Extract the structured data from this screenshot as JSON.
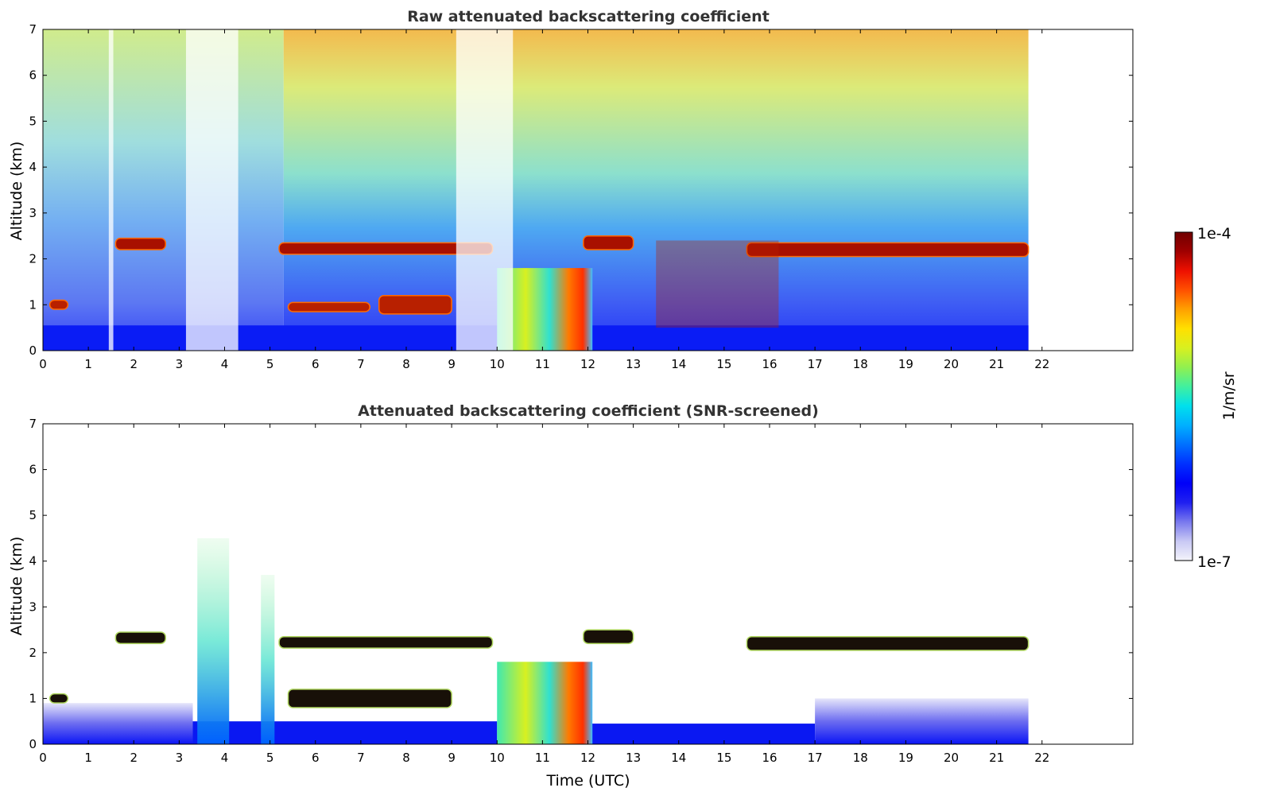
{
  "chart_data": [
    {
      "type": "heatmap",
      "title": "Raw attenuated backscattering coefficient",
      "xlabel": "",
      "ylabel": "Altitude (km)",
      "xlim": [
        0,
        24
      ],
      "ylim": [
        0,
        7
      ],
      "x_ticks": [
        "0",
        "1",
        "2",
        "3",
        "4",
        "5",
        "6",
        "7",
        "8",
        "9",
        "10",
        "11",
        "12",
        "13",
        "14",
        "15",
        "16",
        "17",
        "18",
        "19",
        "20",
        "21",
        "22"
      ],
      "y_ticks": [
        "0",
        "1",
        "2",
        "3",
        "4",
        "5",
        "6",
        "7"
      ],
      "data_end_time": 21.7,
      "features": [
        {
          "kind": "cloud_layer",
          "t": [
            1.6,
            2.7
          ],
          "z": [
            2.2,
            2.45
          ]
        },
        {
          "kind": "cloud_layer",
          "t": [
            0.15,
            0.55
          ],
          "z": [
            0.9,
            1.1
          ]
        },
        {
          "kind": "cloud_layer",
          "t": [
            5.2,
            9.9
          ],
          "z": [
            2.1,
            2.35
          ]
        },
        {
          "kind": "cloud_layer",
          "t": [
            5.4,
            7.2
          ],
          "z": [
            0.85,
            1.05
          ]
        },
        {
          "kind": "cloud_layer",
          "t": [
            7.4,
            9.0
          ],
          "z": [
            0.8,
            1.2
          ]
        },
        {
          "kind": "cloud_layer",
          "t": [
            11.9,
            13.0
          ],
          "z": [
            2.2,
            2.5
          ]
        },
        {
          "kind": "cloud_layer",
          "t": [
            15.5,
            21.7
          ],
          "z": [
            2.05,
            2.35
          ]
        },
        {
          "kind": "convective_cloud",
          "t": [
            10.0,
            12.1
          ],
          "z": [
            0,
            1.8
          ]
        },
        {
          "kind": "broken_clouds",
          "t": [
            13.5,
            16.2
          ],
          "z": [
            0.5,
            2.4
          ]
        },
        {
          "kind": "missing_profiles",
          "t": [
            1.45,
            1.55
          ]
        },
        {
          "kind": "missing_profiles",
          "t": [
            3.15,
            4.3
          ]
        },
        {
          "kind": "missing_profiles",
          "t": [
            9.1,
            10.35
          ]
        }
      ]
    },
    {
      "type": "heatmap",
      "title": "Attenuated backscattering coefficient (SNR-screened)",
      "xlabel": "Time (UTC)",
      "ylabel": "Altitude (km)",
      "xlim": [
        0,
        24
      ],
      "ylim": [
        0,
        7
      ],
      "x_ticks": [
        "0",
        "1",
        "2",
        "3",
        "4",
        "5",
        "6",
        "7",
        "8",
        "9",
        "10",
        "11",
        "12",
        "13",
        "14",
        "15",
        "16",
        "17",
        "18",
        "19",
        "20",
        "21",
        "22"
      ],
      "y_ticks": [
        "0",
        "1",
        "2",
        "3",
        "4",
        "5",
        "6",
        "7"
      ],
      "data_end_time": 21.7,
      "features": [
        {
          "kind": "cloud_layer",
          "t": [
            1.6,
            2.7
          ],
          "z": [
            2.2,
            2.45
          ]
        },
        {
          "kind": "cloud_layer",
          "t": [
            0.15,
            0.55
          ],
          "z": [
            0.9,
            1.1
          ]
        },
        {
          "kind": "cloud_layer",
          "t": [
            5.2,
            9.9
          ],
          "z": [
            2.1,
            2.35
          ]
        },
        {
          "kind": "cloud_layer",
          "t": [
            5.4,
            9.0
          ],
          "z": [
            0.8,
            1.2
          ]
        },
        {
          "kind": "cloud_layer",
          "t": [
            11.9,
            13.0
          ],
          "z": [
            2.2,
            2.5
          ]
        },
        {
          "kind": "cloud_layer",
          "t": [
            15.5,
            21.7
          ],
          "z": [
            2.05,
            2.35
          ]
        },
        {
          "kind": "convective_cloud",
          "t": [
            10.0,
            12.1
          ],
          "z": [
            0,
            1.8
          ]
        },
        {
          "kind": "aerosol_plume",
          "t": [
            3.4,
            4.1
          ],
          "z": [
            0,
            4.5
          ]
        },
        {
          "kind": "aerosol_plume",
          "t": [
            4.8,
            5.1
          ],
          "z": [
            0,
            3.7
          ]
        }
      ]
    }
  ],
  "colorbar": {
    "label": "1/m/sr",
    "max_label": "1e-4",
    "min_label": "1e-7",
    "scale": "log",
    "range": [
      1e-07,
      0.0001
    ],
    "colors": [
      "#f4f4fb",
      "#c8c8f4",
      "#7878ee",
      "#2020f0",
      "#0000f8",
      "#0030ff",
      "#0070ff",
      "#00b0ff",
      "#00e0ec",
      "#40f0a0",
      "#90f050",
      "#d8f020",
      "#ffe000",
      "#ffa000",
      "#ff5000",
      "#ee1000",
      "#a00000",
      "#700000"
    ]
  },
  "colors": {
    "axis": "#000000",
    "title": "#333333",
    "background": "#ffffff"
  }
}
